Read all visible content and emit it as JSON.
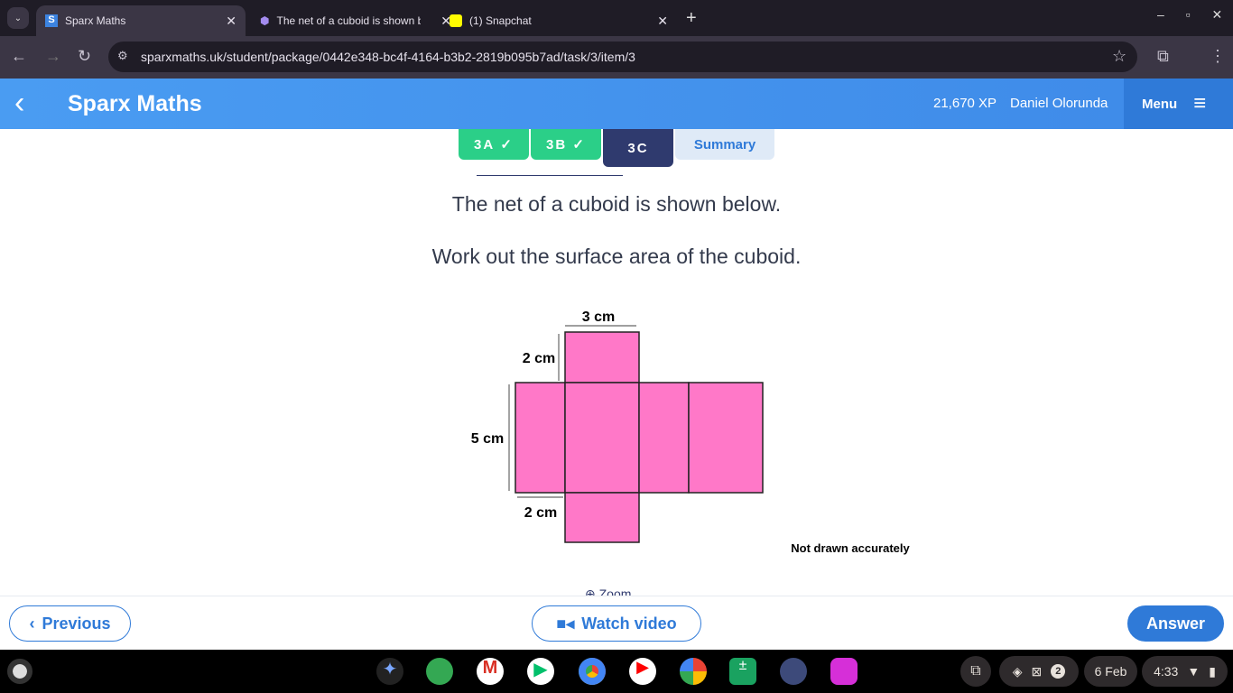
{
  "browser": {
    "tabs": [
      {
        "title": "Sparx Maths",
        "active": true
      },
      {
        "title": "The net of a cuboid is shown b"
      },
      {
        "title": "(1) Snapchat"
      }
    ],
    "url": "sparxmaths.uk/student/package/0442e348-bc4f-4164-b3b2-2819b095b7ad/task/3/item/3"
  },
  "header": {
    "title": "Sparx Maths",
    "xp": "21,670 XP",
    "user": "Daniel Olorunda",
    "menu": "Menu"
  },
  "tabs": [
    {
      "label": "3A",
      "done": true
    },
    {
      "label": "3B",
      "done": true
    },
    {
      "label": "3C",
      "active": true
    },
    {
      "label": "Summary"
    }
  ],
  "question": {
    "line1": "The net of a cuboid is shown below.",
    "line2": "Work out the surface area of the cuboid."
  },
  "diagram": {
    "top": "3 cm",
    "side_top": "2 cm",
    "side_left": "5 cm",
    "bottom": "2 cm",
    "note": "Not drawn accurately",
    "fill": "#ff78c8"
  },
  "zoom": "Zoom",
  "footer": {
    "previous": "Previous",
    "watch": "Watch video",
    "answer": "Answer"
  },
  "shelf": {
    "badge": "2",
    "date": "6 Feb",
    "time": "4:33"
  }
}
